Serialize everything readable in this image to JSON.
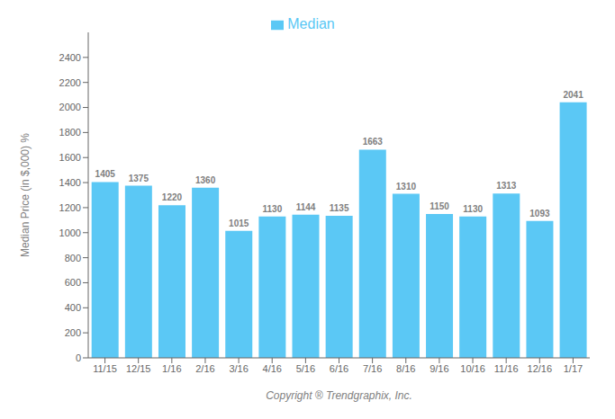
{
  "chart_data": {
    "type": "bar",
    "categories": [
      "11/15",
      "12/15",
      "1/16",
      "2/16",
      "3/16",
      "4/16",
      "5/16",
      "6/16",
      "7/16",
      "8/16",
      "9/16",
      "10/16",
      "11/16",
      "12/16",
      "1/17"
    ],
    "series": [
      {
        "name": "Median",
        "color": "#5BC8F5",
        "values": [
          1405,
          1375,
          1220,
          1360,
          1015,
          1130,
          1144,
          1135,
          1663,
          1310,
          1150,
          1130,
          1313,
          1093,
          2041
        ]
      }
    ],
    "ylabel": "Median Price (in $,000) %",
    "xlabel": "Copyright ® Trendgraphix, Inc.",
    "ylim": [
      0,
      2600
    ],
    "yticks": [
      0,
      200,
      400,
      600,
      800,
      1000,
      1200,
      1400,
      1600,
      1800,
      2000,
      2200,
      2400
    ],
    "legend": "top",
    "data_labels": true,
    "grid": false
  }
}
